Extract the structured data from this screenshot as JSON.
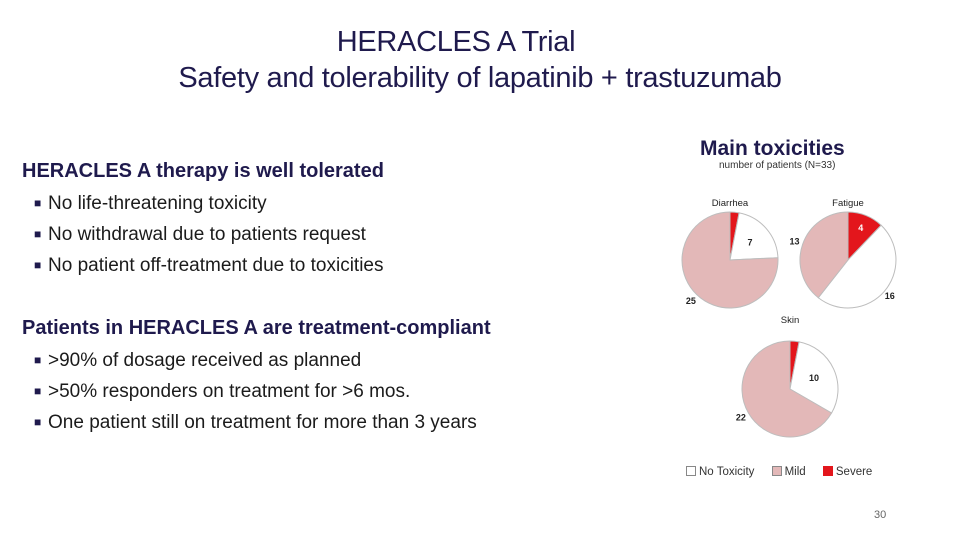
{
  "slide": {
    "title_line1": "HERACLES A Trial",
    "title_line2": "Safety and tolerability of lapatinib + trastuzumab",
    "section1": {
      "heading": "HERACLES A therapy is well tolerated",
      "bullets": [
        "No life-threatening  toxicity",
        "No withdrawal due to patients request",
        "No patient off-treatment due to toxicities"
      ]
    },
    "section2": {
      "heading": "Patients in HERACLES A are treatment-compliant",
      "bullets": [
        ">90% of dosage received as planned",
        ">50% responders on treatment for >6 mos.",
        "One patient still on treatment for more than 3 years"
      ]
    },
    "charts_title": "Main toxicities",
    "charts_subtitle": "number of patients (N=33)",
    "page_number": "30"
  },
  "chart_data": {
    "type": "pie",
    "legend": [
      {
        "label": "No Toxicity",
        "color": "#ffffff"
      },
      {
        "label": "Mild",
        "color": "#e3b8b8"
      },
      {
        "label": "Severe",
        "color": "#e3161c"
      }
    ],
    "charts": [
      {
        "title": "Diarrhea",
        "no_toxicity": 7,
        "mild": 25,
        "severe": 1
      },
      {
        "title": "Fatigue",
        "no_toxicity": 16,
        "mild": 13,
        "severe": 4
      },
      {
        "title": "Skin",
        "no_toxicity": 10,
        "mild": 22,
        "severe": 1
      }
    ]
  }
}
